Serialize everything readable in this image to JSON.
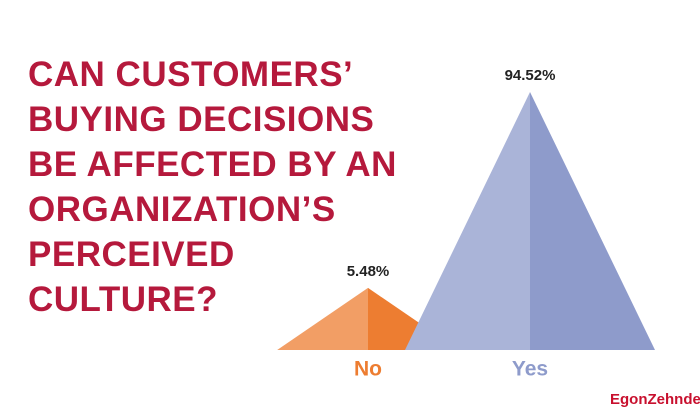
{
  "chart_data": {
    "type": "pyramid",
    "title": "CAN CUSTOMERS’ BUYING DECISIONS BE AFFECTED BY AN ORGANIZATION’S PERCEIVED CULTURE?",
    "categories": [
      "No",
      "Yes"
    ],
    "values": [
      5.48,
      94.52
    ],
    "value_labels": [
      "5.48%",
      "94.52%"
    ],
    "colors": [
      "#ed7d31",
      "#8e9bcb"
    ],
    "source": "EgonZehnder"
  }
}
